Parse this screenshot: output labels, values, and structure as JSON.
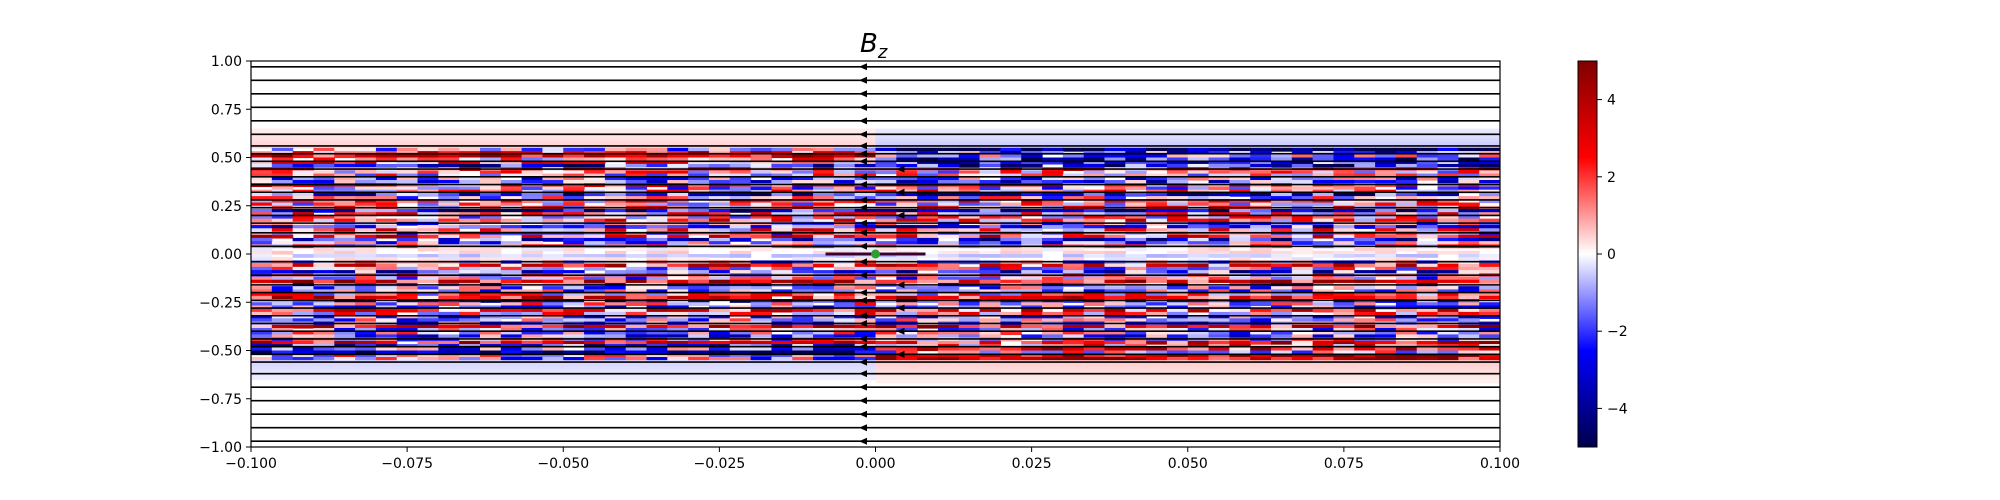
{
  "chart_data": {
    "type": "heatmap",
    "title": "B",
    "title_subscript": "z",
    "xlabel": "",
    "ylabel": "",
    "xlim": [
      -0.1,
      0.1
    ],
    "ylim": [
      -1.0,
      1.0
    ],
    "x_ticks": [
      "-0.100",
      "-0.075",
      "-0.050",
      "-0.025",
      "0.000",
      "0.025",
      "0.050",
      "0.075",
      "0.100"
    ],
    "y_ticks": [
      "1.00",
      "0.75",
      "0.50",
      "0.25",
      "0.00",
      "-0.25",
      "-0.50",
      "-0.75",
      "-1.00"
    ],
    "colorbar": {
      "colormap": "seismic",
      "range": [
        -5,
        5
      ],
      "ticks": [
        "4",
        "2",
        "0",
        "-2",
        "-4"
      ]
    },
    "field_lines": {
      "direction": "negative-x",
      "color": "#000000",
      "y_positions": [
        0.97,
        0.9,
        0.83,
        0.76,
        0.69,
        0.62,
        0.56,
        0.52,
        0.48,
        0.44,
        0.4,
        0.36,
        0.32,
        0.28,
        0.24,
        0.2,
        0.16,
        0.11,
        0.04,
        -0.04,
        -0.11,
        -0.16,
        -0.2,
        -0.24,
        -0.28,
        -0.32,
        -0.36,
        -0.4,
        -0.44,
        -0.48,
        -0.52,
        -0.56,
        -0.62,
        -0.69,
        -0.76,
        -0.83,
        -0.9,
        -0.97
      ]
    },
    "marker": {
      "x": 0.0,
      "y": 0.0,
      "color": "#2ca02c"
    },
    "grid": false,
    "legend": "none"
  }
}
